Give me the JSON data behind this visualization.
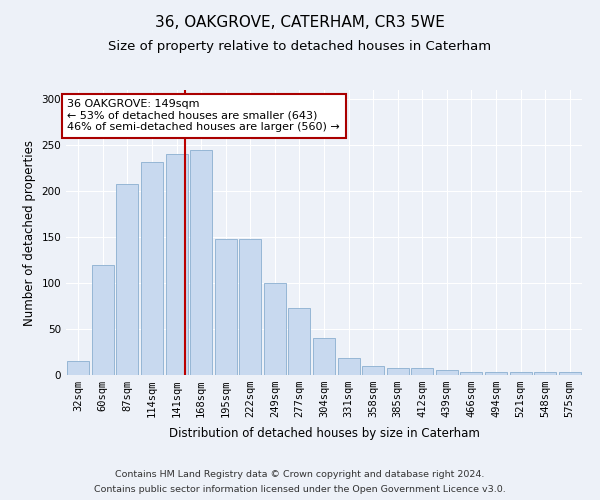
{
  "title": "36, OAKGROVE, CATERHAM, CR3 5WE",
  "subtitle": "Size of property relative to detached houses in Caterham",
  "xlabel": "Distribution of detached houses by size in Caterham",
  "ylabel": "Number of detached properties",
  "categories": [
    "32sqm",
    "60sqm",
    "87sqm",
    "114sqm",
    "141sqm",
    "168sqm",
    "195sqm",
    "222sqm",
    "249sqm",
    "277sqm",
    "304sqm",
    "331sqm",
    "358sqm",
    "385sqm",
    "412sqm",
    "439sqm",
    "466sqm",
    "494sqm",
    "521sqm",
    "548sqm",
    "575sqm"
  ],
  "values": [
    15,
    120,
    208,
    232,
    240,
    245,
    148,
    148,
    100,
    73,
    40,
    18,
    10,
    8,
    8,
    5,
    3,
    3,
    3,
    3,
    3
  ],
  "bar_color": "#c8d9ef",
  "bar_edgecolor": "#8aafd0",
  "red_line_x": 4.35,
  "annotation_title": "36 OAKGROVE: 149sqm",
  "annotation_line1": "← 53% of detached houses are smaller (643)",
  "annotation_line2": "46% of semi-detached houses are larger (560) →",
  "annotation_box_facecolor": "#ffffff",
  "annotation_box_edgecolor": "#aa0000",
  "ylim": [
    0,
    310
  ],
  "yticks": [
    0,
    50,
    100,
    150,
    200,
    250,
    300
  ],
  "background_color": "#edf1f8",
  "grid_color": "#ffffff",
  "title_fontsize": 11,
  "subtitle_fontsize": 9.5,
  "label_fontsize": 8.5,
  "tick_fontsize": 7.5,
  "annot_fontsize": 8,
  "footer_fontsize": 6.8,
  "footer_line1": "Contains HM Land Registry data © Crown copyright and database right 2024.",
  "footer_line2": "Contains public sector information licensed under the Open Government Licence v3.0."
}
